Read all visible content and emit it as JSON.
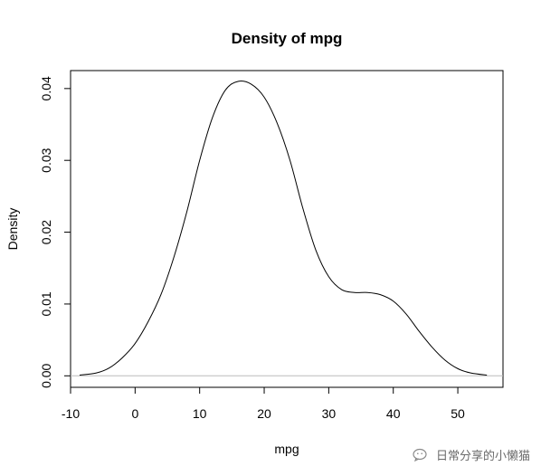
{
  "chart_data": {
    "type": "line",
    "title": "Density of mpg",
    "xlabel": "mpg",
    "ylabel": "Density",
    "xlim": [
      -10,
      57
    ],
    "ylim": [
      -0.0016,
      0.0425
    ],
    "xticks": [
      -10,
      0,
      10,
      20,
      30,
      40,
      50
    ],
    "yticks": [
      0.0,
      0.01,
      0.02,
      0.03,
      0.04
    ],
    "xtick_labels": [
      "-10",
      "0",
      "10",
      "20",
      "30",
      "40",
      "50"
    ],
    "ytick_labels": [
      "0.00",
      "0.01",
      "0.02",
      "0.03",
      "0.04"
    ],
    "baseline": 0,
    "baseline_color": "#bbbbbb",
    "line_color": "#000000",
    "grid": false,
    "series": [
      {
        "x": [
          -8.6,
          -6,
          -4,
          -2,
          0,
          2,
          4,
          6,
          8,
          10,
          12,
          14,
          16,
          18,
          20,
          22,
          24,
          26,
          28,
          30,
          32,
          34,
          36,
          38,
          40,
          42,
          44,
          46,
          48,
          50,
          52,
          54.5
        ],
        "values": [
          0.0001,
          0.0004,
          0.0011,
          0.0025,
          0.0045,
          0.0075,
          0.0113,
          0.0165,
          0.0228,
          0.03,
          0.036,
          0.0398,
          0.041,
          0.0406,
          0.0388,
          0.0352,
          0.03,
          0.0233,
          0.0175,
          0.0138,
          0.012,
          0.0116,
          0.0116,
          0.0113,
          0.0104,
          0.0086,
          0.0062,
          0.004,
          0.0022,
          0.001,
          0.0004,
          0.0001
        ]
      }
    ]
  },
  "watermark": {
    "text": "日常分享的小懒猫",
    "icon": "wechat-icon"
  }
}
